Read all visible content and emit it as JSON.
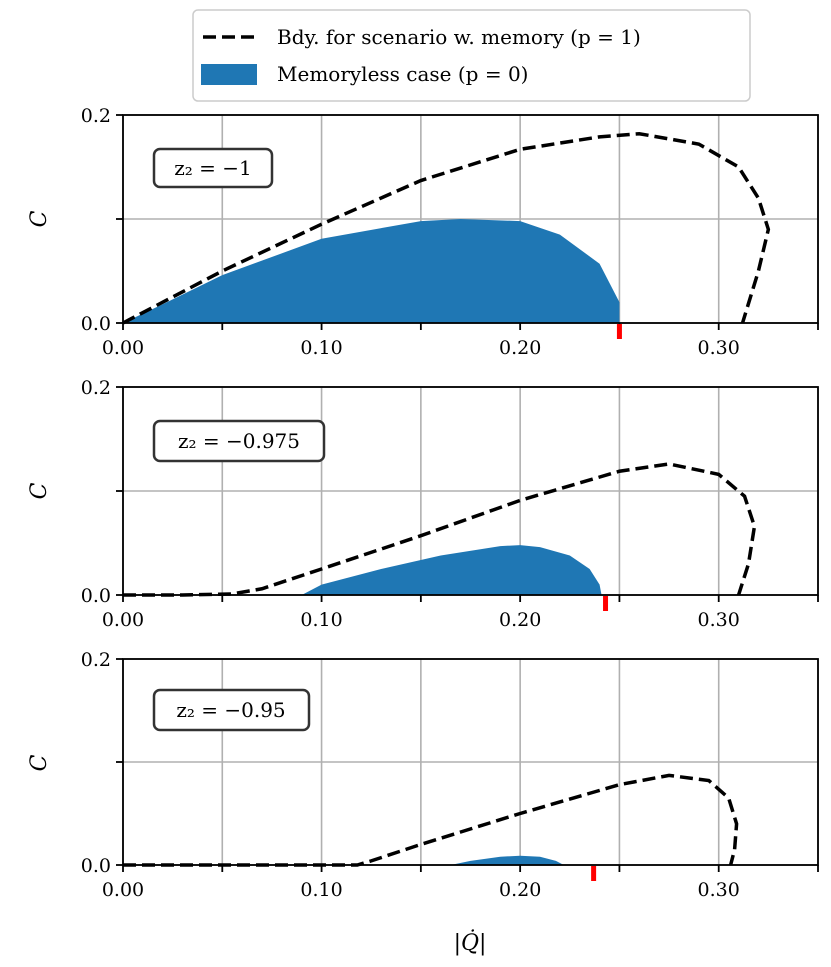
{
  "legend": {
    "entries": [
      {
        "label": "Bdy. for scenario w. memory (p = 1)",
        "style": "dashed",
        "color": "#000000"
      },
      {
        "label": "Memoryless case (p = 0)",
        "style": "fill",
        "color": "#1f77b4"
      }
    ]
  },
  "colors": {
    "fill": "#1f77b4",
    "boundary": "#000000",
    "marker": "#ff0000",
    "grid": "#b0b0b0"
  },
  "chart_data": [
    {
      "type": "area",
      "annotation": "z₂ = −1",
      "xlabel": "",
      "ylabel": "C",
      "xlim": [
        0,
        0.35
      ],
      "ylim": [
        0,
        0.2
      ],
      "xticks": [
        0.0,
        0.05,
        0.1,
        0.15,
        0.2,
        0.25,
        0.3,
        0.35
      ],
      "xtick_labels": [
        "0.00",
        "",
        "0.10",
        "",
        "0.20",
        "",
        "0.30",
        ""
      ],
      "yticks": [
        0.0,
        0.1,
        0.2
      ],
      "ytick_labels": [
        "0.0",
        "",
        "0.2"
      ],
      "grid": true,
      "marker_x": 0.25,
      "series": [
        {
          "name": "Memoryless case (p = 0)",
          "kind": "fill",
          "x": [
            0.0,
            0.02,
            0.05,
            0.1,
            0.15,
            0.17,
            0.2,
            0.22,
            0.24,
            0.25,
            0.25
          ],
          "y": [
            0.0,
            0.018,
            0.046,
            0.081,
            0.098,
            0.1,
            0.098,
            0.085,
            0.057,
            0.02,
            0.0
          ]
        },
        {
          "name": "Bdy. for scenario w. memory (p = 1)",
          "kind": "dashed",
          "x": [
            0.0,
            0.05,
            0.1,
            0.15,
            0.2,
            0.24,
            0.26,
            0.29,
            0.31,
            0.32,
            0.325,
            0.32,
            0.312
          ],
          "y": [
            0.0,
            0.05,
            0.095,
            0.137,
            0.167,
            0.179,
            0.182,
            0.172,
            0.15,
            0.12,
            0.09,
            0.05,
            0.0
          ]
        }
      ]
    },
    {
      "type": "area",
      "annotation": "z₂ = −0.975",
      "xlabel": "",
      "ylabel": "C",
      "xlim": [
        0,
        0.35
      ],
      "ylim": [
        0,
        0.2
      ],
      "xticks": [
        0.0,
        0.05,
        0.1,
        0.15,
        0.2,
        0.25,
        0.3,
        0.35
      ],
      "xtick_labels": [
        "0.00",
        "",
        "0.10",
        "",
        "0.20",
        "",
        "0.30",
        ""
      ],
      "yticks": [
        0.0,
        0.1,
        0.2
      ],
      "ytick_labels": [
        "0.0",
        "",
        "0.2"
      ],
      "grid": true,
      "marker_x": 0.243,
      "series": [
        {
          "name": "Memoryless case (p = 0)",
          "kind": "fill",
          "x": [
            0.09,
            0.1,
            0.13,
            0.16,
            0.19,
            0.2,
            0.21,
            0.225,
            0.235,
            0.24,
            0.241
          ],
          "y": [
            0.0,
            0.01,
            0.025,
            0.038,
            0.047,
            0.048,
            0.046,
            0.038,
            0.025,
            0.01,
            0.0
          ]
        },
        {
          "name": "Bdy. for scenario w. memory (p = 1)",
          "kind": "dashed",
          "x": [
            0.0,
            0.03,
            0.055,
            0.07,
            0.1,
            0.15,
            0.2,
            0.25,
            0.275,
            0.3,
            0.313,
            0.318,
            0.315,
            0.31
          ],
          "y": [
            0.0,
            0.0,
            0.001,
            0.006,
            0.025,
            0.057,
            0.091,
            0.119,
            0.126,
            0.116,
            0.095,
            0.066,
            0.03,
            0.0
          ]
        }
      ]
    },
    {
      "type": "area",
      "annotation": "z₂ = −0.95",
      "xlabel": "|Q̇|",
      "ylabel": "C",
      "xlim": [
        0,
        0.35
      ],
      "ylim": [
        0,
        0.2
      ],
      "xticks": [
        0.0,
        0.05,
        0.1,
        0.15,
        0.2,
        0.25,
        0.3,
        0.35
      ],
      "xtick_labels": [
        "0.00",
        "",
        "0.10",
        "",
        "0.20",
        "",
        "0.30",
        ""
      ],
      "yticks": [
        0.0,
        0.1,
        0.2
      ],
      "ytick_labels": [
        "0.0",
        "",
        "0.2"
      ],
      "grid": true,
      "marker_x": 0.237,
      "series": [
        {
          "name": "Memoryless case (p = 0)",
          "kind": "fill",
          "x": [
            0.165,
            0.175,
            0.19,
            0.2,
            0.21,
            0.218,
            0.222
          ],
          "y": [
            0.0,
            0.004,
            0.008,
            0.009,
            0.008,
            0.004,
            0.0
          ]
        },
        {
          "name": "Bdy. for scenario w. memory (p = 1)",
          "kind": "dashed",
          "x": [
            0.0,
            0.05,
            0.1,
            0.118,
            0.125,
            0.15,
            0.2,
            0.25,
            0.275,
            0.295,
            0.305,
            0.309,
            0.308,
            0.306
          ],
          "y": [
            0.0,
            0.0,
            0.0,
            0.0,
            0.004,
            0.02,
            0.05,
            0.078,
            0.087,
            0.082,
            0.065,
            0.04,
            0.015,
            0.0
          ]
        }
      ]
    }
  ]
}
